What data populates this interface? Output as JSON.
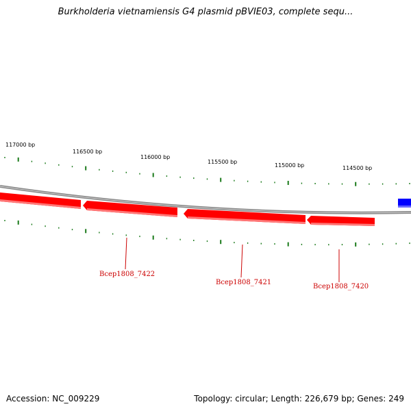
{
  "title": "Burkholderia vietnamiensis G4 plasmid pBVIE03, complete sequ...",
  "footer": {
    "accession": "Accession: NC_009229",
    "summary": "Topology: circular; Length: 226,679 bp; Genes: 249"
  },
  "scale_labels": [
    "117000 bp",
    "116500 bp",
    "116000 bp",
    "115500 bp",
    "115000 bp",
    "114500 bp"
  ],
  "genes": [
    {
      "name": "Bcep1808_7422",
      "strand": "-"
    },
    {
      "name": "Bcep1808_7421",
      "strand": "-"
    },
    {
      "name": "Bcep1808_7420",
      "strand": "-"
    }
  ],
  "colors": {
    "backbone": "#888888",
    "gene_fill": "#ff0000",
    "gene_label": "#cc0000",
    "tick": "#1a7a1a",
    "other_feature": "#0000ff"
  }
}
